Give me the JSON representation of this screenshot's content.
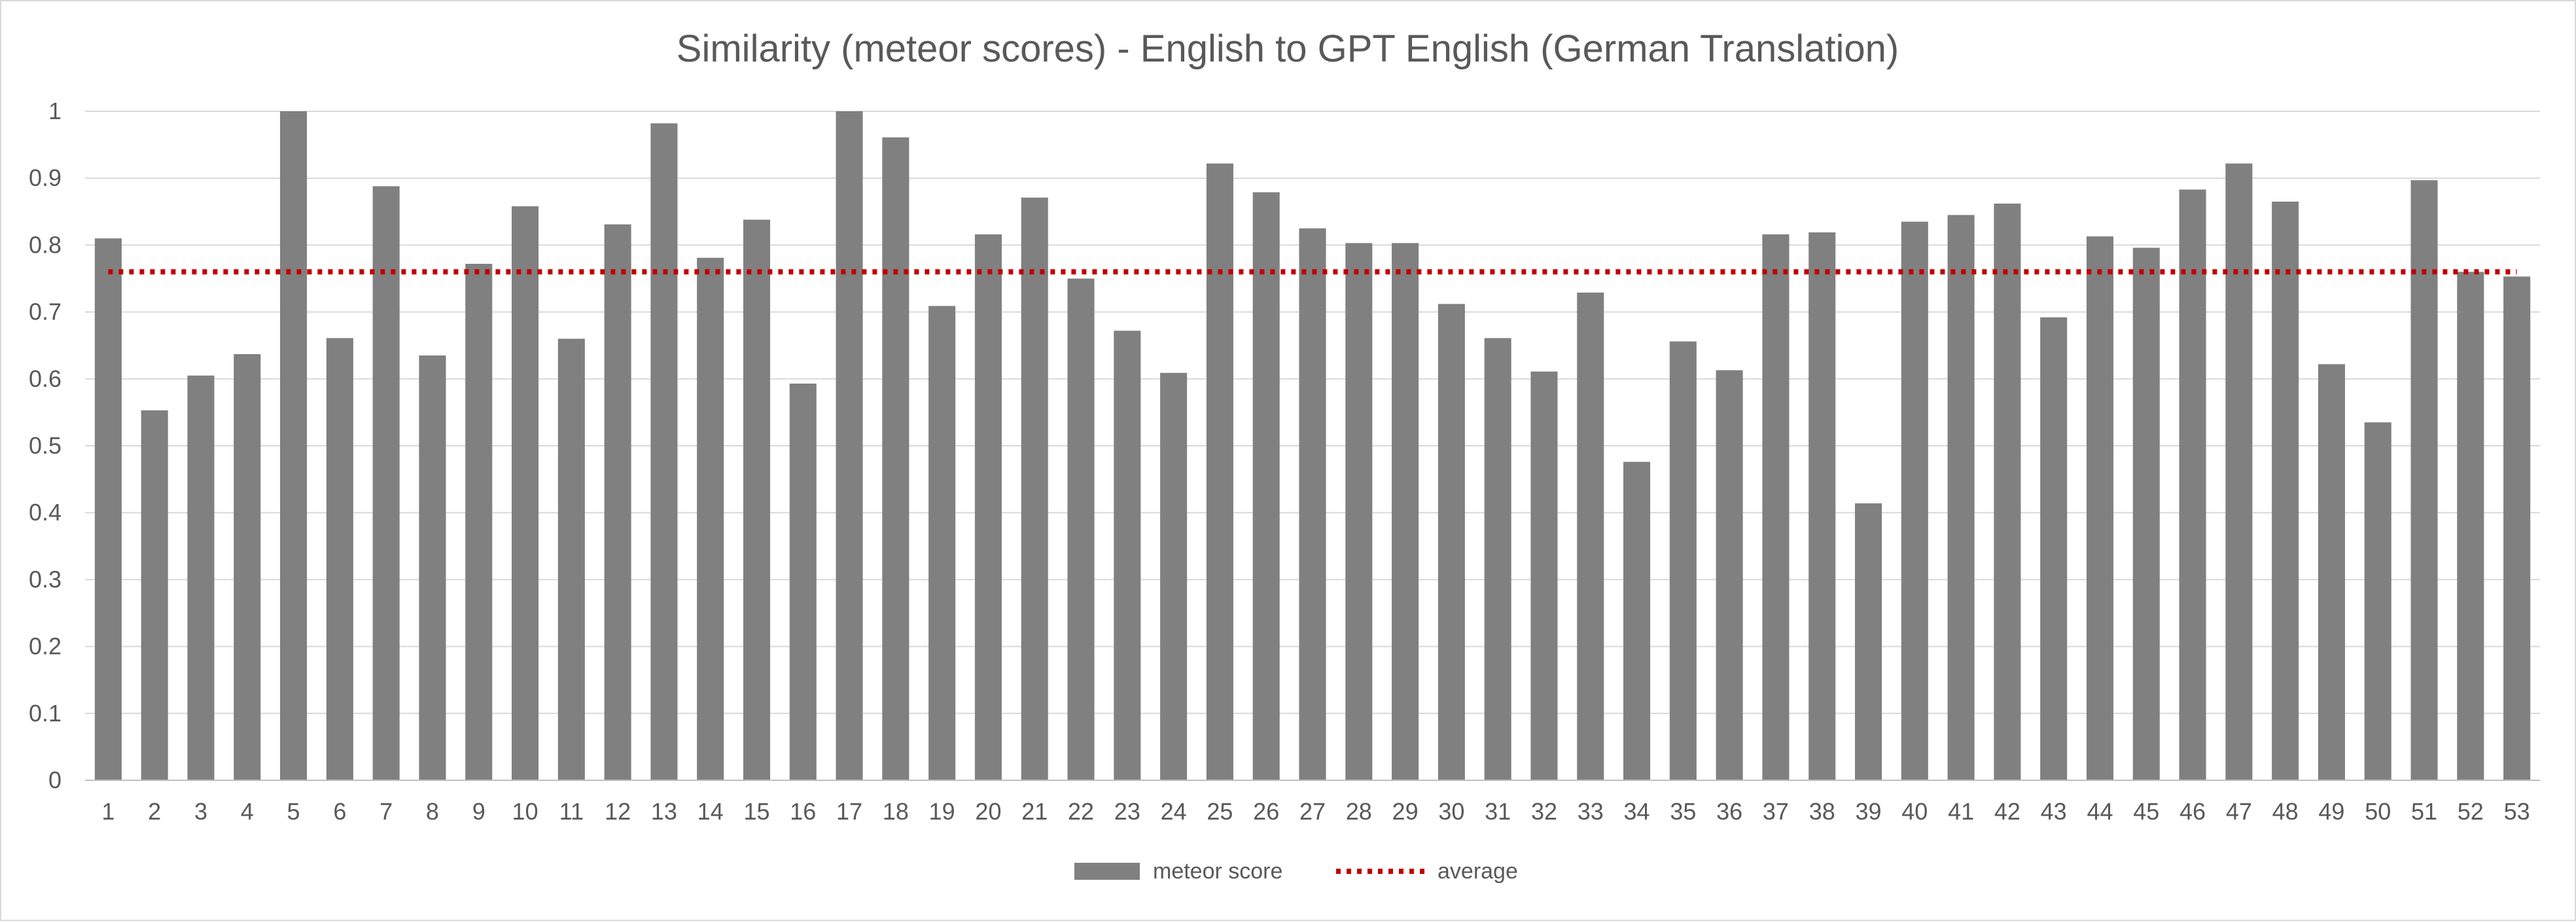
{
  "chart_data": {
    "type": "bar",
    "title": "Similarity (meteor scores) - English to GPT English (German Translation)",
    "xlabel": "",
    "ylabel": "",
    "ylim": [
      0,
      1
    ],
    "y_ticks": [
      "0",
      "0.1",
      "0.2",
      "0.3",
      "0.4",
      "0.5",
      "0.6",
      "0.7",
      "0.8",
      "0.9",
      "1"
    ],
    "grid": true,
    "legend_position": "bottom",
    "categories": [
      "1",
      "2",
      "3",
      "4",
      "5",
      "6",
      "7",
      "8",
      "9",
      "10",
      "11",
      "12",
      "13",
      "14",
      "15",
      "16",
      "17",
      "18",
      "19",
      "20",
      "21",
      "22",
      "23",
      "24",
      "25",
      "26",
      "27",
      "28",
      "29",
      "30",
      "31",
      "32",
      "33",
      "34",
      "35",
      "36",
      "37",
      "38",
      "39",
      "40",
      "41",
      "42",
      "43",
      "44",
      "45",
      "46",
      "47",
      "48",
      "49",
      "50",
      "51",
      "52",
      "53"
    ],
    "series": [
      {
        "name": "meteor score",
        "kind": "bar",
        "color": "#808080",
        "values": [
          0.81,
          0.553,
          0.605,
          0.637,
          1.0,
          0.661,
          0.888,
          0.635,
          0.772,
          0.858,
          0.66,
          0.831,
          0.982,
          0.781,
          0.838,
          0.593,
          1.0,
          0.961,
          0.709,
          0.816,
          0.871,
          0.75,
          0.672,
          0.609,
          0.922,
          0.879,
          0.825,
          0.803,
          0.803,
          0.712,
          0.661,
          0.611,
          0.729,
          0.476,
          0.656,
          0.613,
          0.816,
          0.819,
          0.414,
          0.835,
          0.845,
          0.862,
          0.692,
          0.813,
          0.796,
          0.883,
          0.922,
          0.865,
          0.622,
          0.535,
          0.897,
          0.76,
          0.753
        ]
      },
      {
        "name": "average",
        "kind": "line",
        "style": "dotted",
        "color": "#c00000",
        "value": 0.76
      }
    ]
  }
}
